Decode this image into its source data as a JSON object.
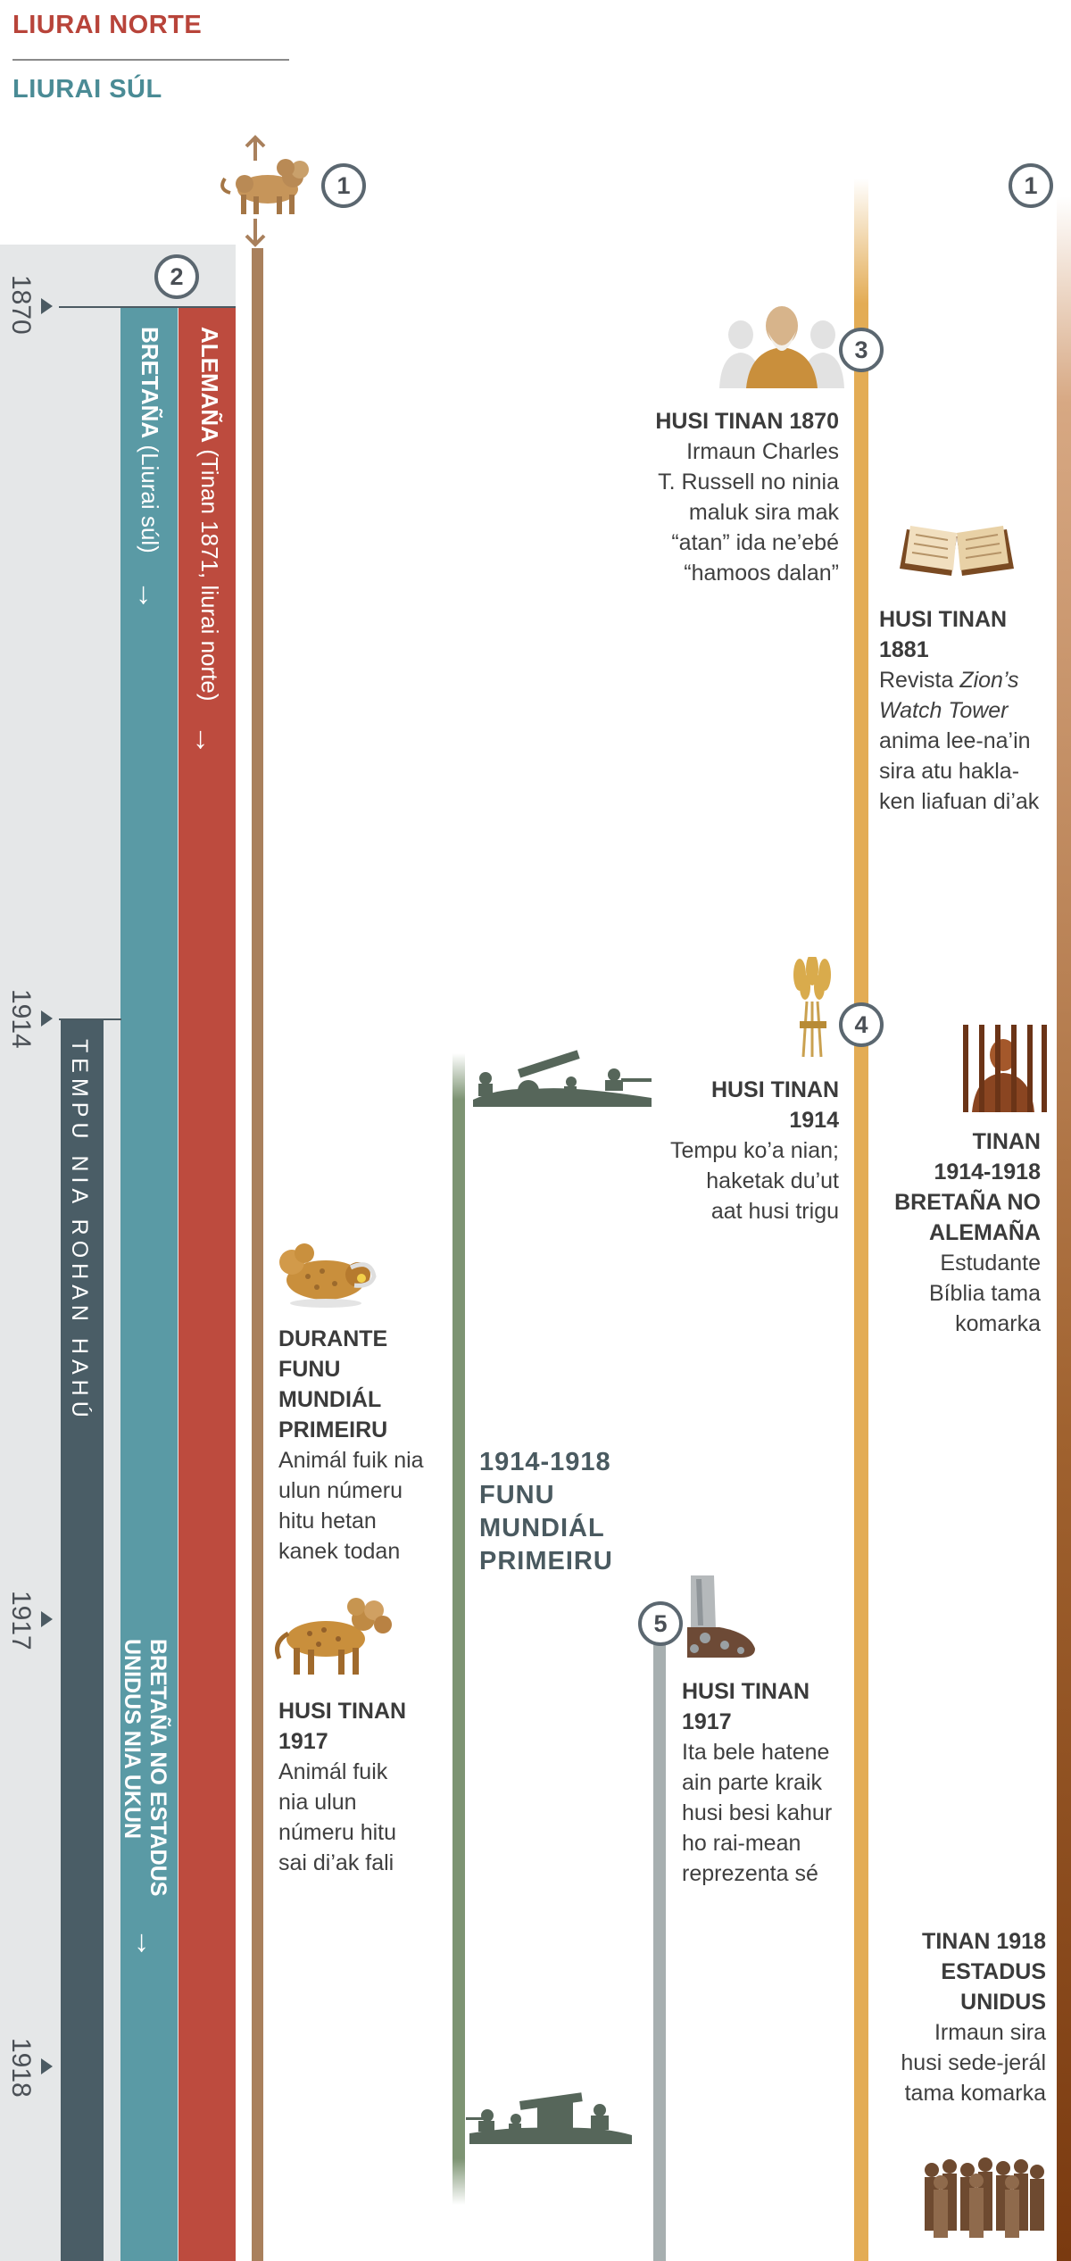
{
  "legend": {
    "north": "LIURAI NORTE",
    "south": "LIURAI SÚL"
  },
  "colors": {
    "north": "#b8443a",
    "south": "#4a8b95",
    "gray_bar": "#4a5d66",
    "teal_bar": "#5a9aa5",
    "red_bar": "#bd4b3e",
    "brown_line": "#a9805c",
    "green_line": "#7d9473",
    "gold_line": "#e3ac55"
  },
  "circles": {
    "c1_left": "1",
    "c2": "2",
    "c3": "3",
    "c4": "4",
    "c5": "5",
    "c1_right": "1"
  },
  "years": [
    "1870",
    "1914",
    "1917",
    "1918"
  ],
  "bars": {
    "germany_bold": "ALEMAÑA",
    "germany_rest": " (Tinan 1871, liurai norte)",
    "britain_bold": "BRETAÑA",
    "britain_rest": " (Liurai súl)",
    "end_times": "TEMPU NIA ROHAN HAHÚ",
    "anglo_line1": "BRETAÑA NO ESTADUS",
    "anglo_line2": "UNIDUS NIA UKUN",
    "arrow": "↓"
  },
  "events": {
    "e1870": {
      "heading": "HUSI TINAN 1870",
      "lines": [
        "Irmaun Charles",
        "T. Russell no ninia",
        "maluk sira mak",
        "“atan” ida ne’ebé",
        "“hamoos dalan”"
      ]
    },
    "e1881": {
      "heading1": "HUSI TINAN",
      "heading2": "1881",
      "l1": "Revista ",
      "l1_italic": "Zion’s",
      "l2_italic": "Watch Tower",
      "lines": [
        "anima lee-na’in",
        "sira atu hakla-",
        "ken liafuan di’ak"
      ]
    },
    "e1914": {
      "heading1": "HUSI TINAN",
      "heading2": "1914",
      "lines": [
        "Tempu ko’a nian;",
        "haketak du’ut",
        "aat husi trigu"
      ]
    },
    "e1914_1918_right": {
      "headings": [
        "TINAN",
        "1914-1918",
        "BRETAÑA NO",
        "ALEMAÑA"
      ],
      "lines": [
        "Estudante",
        "Bíblia tama",
        "komarka"
      ]
    },
    "e_ww1_beast": {
      "headings": [
        "DURANTE",
        "FUNU",
        "MUNDIÁL",
        "PRIMEIRU"
      ],
      "lines": [
        "Animál fuik nia",
        "ulun númeru",
        "hitu hetan",
        "kanek todan"
      ]
    },
    "e_ww1_title": {
      "lines": [
        "1914-1918",
        "FUNU",
        "MUNDIÁL",
        "PRIMEIRU"
      ]
    },
    "e1917_beast": {
      "headings": [
        "HUSI TINAN",
        "1917"
      ],
      "lines": [
        "Animál fuik",
        "nia ulun",
        "númeru hitu",
        "sai di’ak fali"
      ]
    },
    "e1917_feet": {
      "headings": [
        "HUSI TINAN",
        "1917"
      ],
      "lines": [
        "Ita bele hatene",
        "ain parte kraik",
        "husi besi kahur",
        "ho rai-mean",
        "reprezenta sé"
      ]
    },
    "e1918": {
      "headings": [
        "TINAN 1918",
        "ESTADUS",
        "UNIDUS"
      ],
      "lines": [
        "Irmaun sira",
        "husi sede-jerál",
        "tama komarka"
      ]
    }
  },
  "icons": [
    "lion-beast-icon",
    "russell-portrait-icon",
    "open-bible-icon",
    "wheat-bundle-icon",
    "prisoner-bars-icon",
    "soldiers-cannon-icon",
    "wounded-beast-icon",
    "healed-beast-icon",
    "iron-clay-feet-icon",
    "brothers-group-icon"
  ]
}
